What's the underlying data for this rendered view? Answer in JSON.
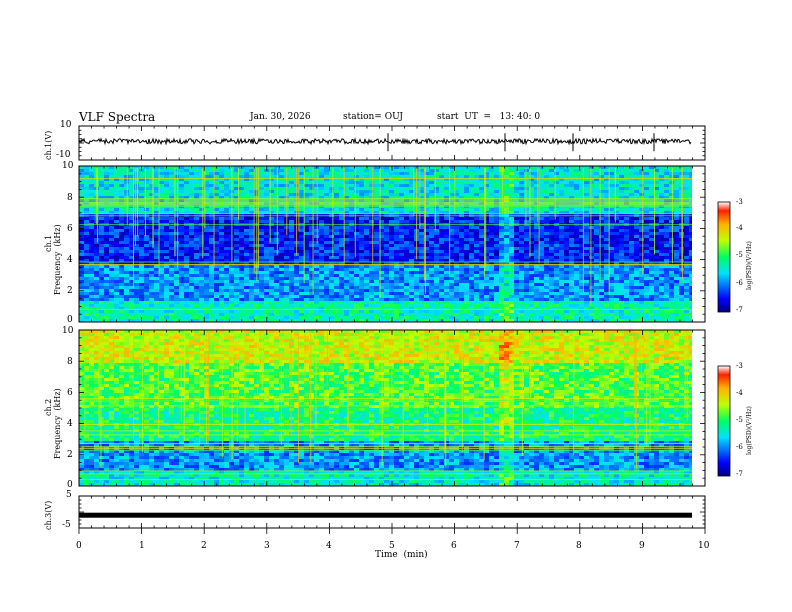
{
  "header": {
    "title": "VLF Spectra",
    "date": "Jan. 30, 2026",
    "station": "station= OUJ",
    "start": "start  UT  =   13: 40: 0"
  },
  "chart_data": [
    {
      "type": "line",
      "panel": "ch1-waveform",
      "ylabel": "ch.1(V)",
      "ylim": [
        -10,
        10
      ],
      "yticks": [
        "10",
        "-10"
      ],
      "xlim": [
        0,
        10
      ],
      "baseline_value": 1
    },
    {
      "type": "heatmap",
      "panel": "ch1-spectrogram",
      "ylabel_top": "ch.1",
      "ylabel": "Frequency  (kHz)",
      "ylim": [
        0,
        10
      ],
      "yticks": [
        "10",
        "8",
        "6",
        "4",
        "2",
        "0"
      ],
      "xlim": [
        0,
        9.8
      ],
      "colorbar": {
        "label": "log(PSD)(V²/Hz)",
        "range": [
          -7,
          -3
        ],
        "ticks": [
          "-3",
          "-4",
          "-5",
          "-6",
          "-7"
        ]
      }
    },
    {
      "type": "heatmap",
      "panel": "ch2-spectrogram",
      "ylabel_top": "ch.2",
      "ylabel": "Frequency  (kHz)",
      "ylim": [
        0,
        10
      ],
      "yticks": [
        "10",
        "8",
        "6",
        "4",
        "2",
        "0"
      ],
      "xlim": [
        0,
        9.8
      ],
      "colorbar": {
        "label": "log(PSD)(V²/Hz)",
        "range": [
          -7,
          -3
        ],
        "ticks": [
          "-3",
          "-4",
          "-5",
          "-6",
          "-7"
        ]
      }
    },
    {
      "type": "line",
      "panel": "ch3-waveform",
      "ylabel": "ch.3(V)",
      "ylim": [
        -5,
        5
      ],
      "yticks": [
        "5",
        "0",
        "-5"
      ],
      "xlim": [
        0,
        10
      ],
      "baseline_value": -1
    }
  ],
  "xaxis": {
    "label": "Time  (min)",
    "ticks": [
      "0",
      "1",
      "2",
      "3",
      "4",
      "5",
      "6",
      "7",
      "8",
      "9",
      "10"
    ]
  }
}
